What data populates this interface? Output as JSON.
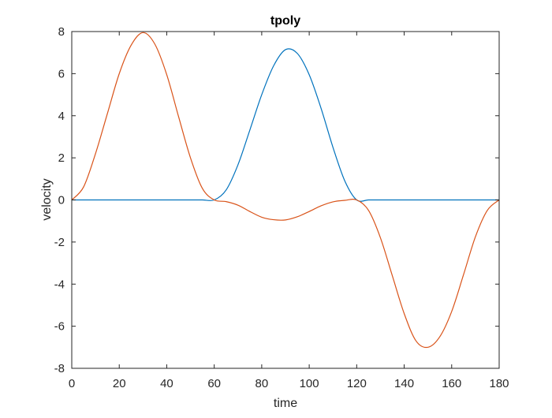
{
  "chart_data": {
    "type": "line",
    "title": "tpoly",
    "xlabel": "time",
    "ylabel": "velocity",
    "xlim": [
      0,
      180
    ],
    "ylim": [
      -8,
      8
    ],
    "xticks": [
      0,
      20,
      40,
      60,
      80,
      100,
      120,
      140,
      160,
      180
    ],
    "yticks": [
      -8,
      -6,
      -4,
      -2,
      0,
      2,
      4,
      6,
      8
    ],
    "grid": false,
    "legend": "none",
    "x": [
      0,
      5,
      10,
      15,
      20,
      25,
      30,
      35,
      40,
      45,
      50,
      55,
      60,
      65,
      70,
      75,
      80,
      85,
      90,
      95,
      100,
      105,
      110,
      115,
      120,
      125,
      130,
      135,
      140,
      145,
      150,
      155,
      160,
      165,
      170,
      175,
      180
    ],
    "series": [
      {
        "color": "#0072BD",
        "values": [
          0,
          0,
          0,
          0,
          0,
          0,
          0,
          0,
          0,
          0,
          0,
          0,
          0,
          0.47,
          1.67,
          3.32,
          5.0,
          6.37,
          7.14,
          6.96,
          5.95,
          4.35,
          2.5,
          0.9,
          0,
          0,
          0,
          0,
          0,
          0,
          0,
          0,
          0,
          0,
          0,
          0,
          0
        ]
      },
      {
        "color": "#D95319",
        "values": [
          0,
          0.62,
          2.2,
          4.1,
          6.0,
          7.35,
          7.95,
          7.4,
          5.95,
          3.95,
          2.0,
          0.55,
          0,
          -0.08,
          -0.25,
          -0.55,
          -0.82,
          -0.94,
          -0.95,
          -0.8,
          -0.55,
          -0.28,
          -0.09,
          -0.02,
          0,
          -0.5,
          -1.8,
          -3.6,
          -5.4,
          -6.7,
          -7.0,
          -6.5,
          -5.3,
          -3.55,
          -1.75,
          -0.5,
          0
        ]
      }
    ]
  }
}
